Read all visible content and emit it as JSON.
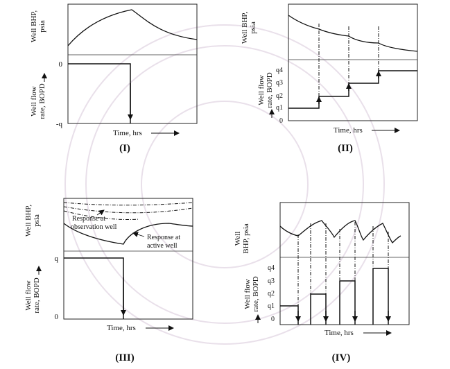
{
  "panels": {
    "p1": {
      "caption": "(I)",
      "bhp_label_1": "Well BHP,",
      "bhp_label_2": "psia",
      "rate_label_1": "Well flow",
      "rate_label_2": "rate, BOPD",
      "tick_zero": "0",
      "tick_negq": "-q",
      "time_label": "Time, hrs"
    },
    "p2": {
      "caption": "(II)",
      "bhp_label_1": "Well BHP,",
      "bhp_label_2": "psia",
      "rate_label_1": "Well flow",
      "rate_label_2": "rate, BOPD",
      "ticks": [
        "q4",
        "q3",
        "q2",
        "q1",
        "0"
      ],
      "time_label": "Time, hrs"
    },
    "p3": {
      "caption": "(III)",
      "bhp_label_1": "Well BHP,",
      "bhp_label_2": "psia",
      "rate_label_1": "Well flow",
      "rate_label_2": "rate, BOPD",
      "tick_q": "q",
      "tick_zero": "0",
      "time_label": "Time, hrs",
      "annotation_obs_1": "Response at",
      "annotation_obs_2": "observation well",
      "annotation_act_1": "Response at",
      "annotation_act_2": "active well"
    },
    "p4": {
      "caption": "(IV)",
      "bhp_label_1": "Well",
      "bhp_label_2": "BHP, psia",
      "rate_label_1": "Well flow",
      "rate_label_2": "rate, BOPD",
      "ticks": [
        "q4",
        "q3",
        "q2",
        "q1",
        "0"
      ],
      "time_label": "Time, hrs"
    }
  }
}
